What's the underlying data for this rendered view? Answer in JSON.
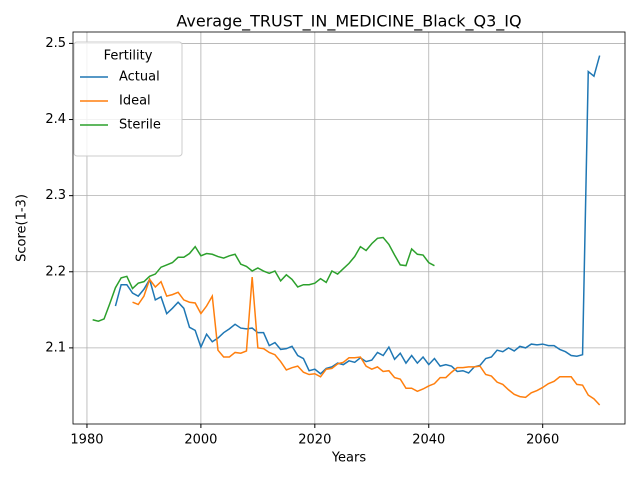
{
  "chart_data": {
    "type": "line",
    "title": "Average_TRUST_IN_MEDICINE_Black_Q3_IQ",
    "xlabel": "Years",
    "ylabel": "Score(1-3)",
    "x": [
      1981,
      1982,
      1983,
      1984,
      1985,
      1986,
      1987,
      1988,
      1989,
      1990,
      1991,
      1992,
      1993,
      1994,
      1995,
      1996,
      1997,
      1998,
      1999,
      2000,
      2001,
      2002,
      2003,
      2004,
      2005,
      2006,
      2007,
      2008,
      2009,
      2010,
      2011,
      2012,
      2013,
      2014,
      2015,
      2016,
      2017,
      2018,
      2019,
      2020,
      2021,
      2022,
      2023,
      2024,
      2025,
      2026,
      2027,
      2028,
      2029,
      2030,
      2031,
      2032,
      2033,
      2034,
      2035,
      2036,
      2037,
      2038,
      2039,
      2040,
      2041,
      2042,
      2043,
      2044,
      2045,
      2046,
      2047,
      2048,
      2049,
      2050,
      2051,
      2052,
      2053,
      2054,
      2055,
      2056,
      2057,
      2058,
      2059,
      2060,
      2061,
      2062,
      2063,
      2064,
      2065,
      2066,
      2067,
      2068,
      2069,
      2070
    ],
    "series": [
      {
        "name": "Actual",
        "color": "#1f77b4",
        "values": [
          null,
          null,
          null,
          null,
          2.155,
          2.183,
          2.183,
          2.172,
          2.168,
          2.177,
          2.19,
          2.163,
          2.167,
          2.145,
          2.152,
          2.16,
          2.152,
          2.127,
          2.123,
          2.101,
          2.118,
          2.108,
          2.113,
          2.12,
          2.125,
          2.131,
          2.126,
          2.125,
          2.126,
          2.12,
          2.12,
          2.103,
          2.107,
          2.098,
          2.099,
          2.102,
          2.09,
          2.086,
          2.07,
          2.072,
          2.066,
          2.073,
          2.075,
          2.08,
          2.078,
          2.083,
          2.081,
          2.087,
          2.082,
          2.084,
          2.094,
          2.09,
          2.101,
          2.085,
          2.093,
          2.08,
          2.09,
          2.08,
          2.088,
          2.078,
          2.086,
          2.076,
          2.078,
          2.076,
          2.069,
          2.07,
          2.067,
          2.075,
          2.077,
          2.086,
          2.088,
          2.097,
          2.095,
          2.1,
          2.096,
          2.102,
          2.1,
          2.105,
          2.104,
          2.105,
          2.103,
          2.103,
          2.098,
          2.095,
          2.09,
          2.089,
          2.091,
          2.463,
          2.457,
          2.484
        ]
      },
      {
        "name": "Ideal",
        "color": "#ff7f0e",
        "values": [
          null,
          null,
          null,
          null,
          null,
          null,
          null,
          2.16,
          2.157,
          2.168,
          2.19,
          2.18,
          2.187,
          2.168,
          2.17,
          2.173,
          2.163,
          2.16,
          2.159,
          2.145,
          2.155,
          2.168,
          2.097,
          2.088,
          2.088,
          2.094,
          2.093,
          2.096,
          2.193,
          2.1,
          2.099,
          2.094,
          2.091,
          2.082,
          2.071,
          2.074,
          2.076,
          2.068,
          2.065,
          2.066,
          2.062,
          2.072,
          2.073,
          2.079,
          2.081,
          2.087,
          2.087,
          2.088,
          2.076,
          2.072,
          2.075,
          2.069,
          2.07,
          2.061,
          2.059,
          2.047,
          2.047,
          2.043,
          2.046,
          2.05,
          2.053,
          2.061,
          2.061,
          2.068,
          2.074,
          2.074,
          2.075,
          2.075,
          2.076,
          2.065,
          2.063,
          2.055,
          2.052,
          2.045,
          2.039,
          2.036,
          2.035,
          2.041,
          2.044,
          2.048,
          2.053,
          2.056,
          2.062,
          2.062,
          2.062,
          2.052,
          2.051,
          2.038,
          2.033,
          2.025
        ]
      },
      {
        "name": "Sterile",
        "color": "#2ca02c",
        "values": [
          2.137,
          2.135,
          2.138,
          2.158,
          2.179,
          2.192,
          2.194,
          2.178,
          2.185,
          2.187,
          2.194,
          2.197,
          2.206,
          2.209,
          2.212,
          2.219,
          2.219,
          2.224,
          2.233,
          2.221,
          2.224,
          2.223,
          2.22,
          2.218,
          2.221,
          2.223,
          2.21,
          2.207,
          2.201,
          2.205,
          2.201,
          2.198,
          2.201,
          2.188,
          2.196,
          2.19,
          2.18,
          2.183,
          2.183,
          2.185,
          2.191,
          2.186,
          2.201,
          2.197,
          2.204,
          2.211,
          2.22,
          2.233,
          2.228,
          2.237,
          2.244,
          2.245,
          2.236,
          2.222,
          2.209,
          2.208,
          2.23,
          2.223,
          2.222,
          2.212,
          2.208,
          null,
          null,
          null,
          null,
          null,
          null,
          null,
          null,
          null,
          null,
          null,
          null,
          null,
          null,
          null,
          null,
          null,
          null,
          null,
          null,
          null,
          null,
          null,
          null,
          null,
          null,
          null,
          null,
          null
        ]
      }
    ],
    "xlim": [
      1977.55,
      2074.45
    ],
    "xticks": [
      1980,
      2000,
      2020,
      2040,
      2060
    ],
    "ylim": [
      2.0,
      2.515
    ],
    "yticks": [
      2.1,
      2.2,
      2.3,
      2.4,
      2.5
    ],
    "grid": true,
    "legend_title": "Fertility",
    "legend_loc": "upper left"
  }
}
